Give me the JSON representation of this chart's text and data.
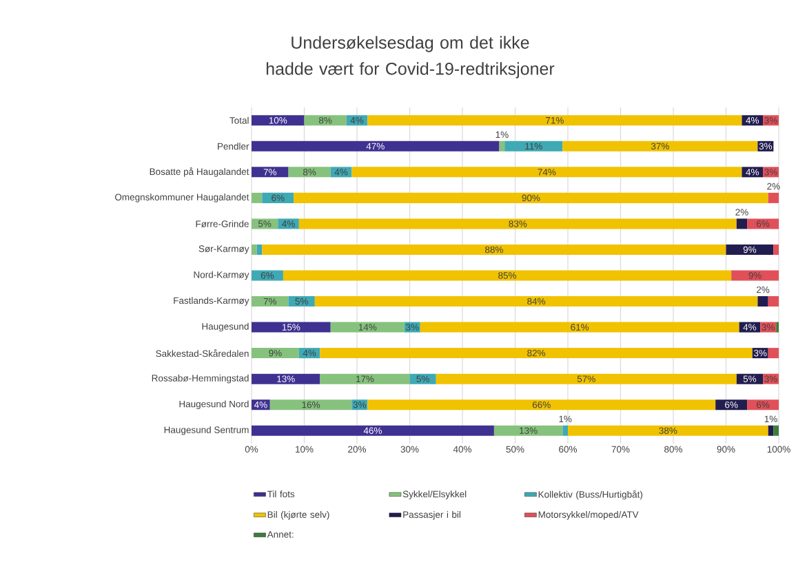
{
  "chart_data": {
    "type": "bar",
    "orientation": "horizontal",
    "stacked": true,
    "title": "Undersøkelsesdag om det ikke hadde vært for Covid-19-redtriksjoner",
    "categories": [
      "Total",
      "Pendler",
      "Bosatte på Haugalandet",
      "Omegnskommuner Haugalandet",
      "Førre-Grinde",
      "Sør-Karmøy",
      "Nord-Karmøy",
      "Fastlands-Karmøy",
      "Haugesund",
      "Sakkestad-Skåredalen",
      "Rossabø-Hemmingstad",
      "Haugesund Nord",
      "Haugesund Sentrum"
    ],
    "series": [
      {
        "name": "Til fots",
        "color": "#3f3191",
        "values": [
          10,
          47,
          7,
          null,
          null,
          null,
          null,
          null,
          15,
          null,
          13,
          3.5,
          46
        ],
        "value_labels": [
          "10%",
          "47%",
          "7%",
          null,
          null,
          null,
          null,
          null,
          "15%",
          null,
          "13%",
          "4%",
          "46%"
        ]
      },
      {
        "name": "Sykkel/Elsykkel",
        "color": "#86c27d",
        "values": [
          8,
          1,
          8,
          2,
          5,
          1,
          null,
          7,
          14,
          9,
          17,
          15.5,
          13
        ],
        "value_labels": [
          "8%",
          "1%",
          "8%",
          null,
          "5%",
          null,
          null,
          "7%",
          "14%",
          "9%",
          "17%",
          "16%",
          "13%"
        ]
      },
      {
        "name": "Kollektiv (Buss/Hurtigbåt)",
        "color": "#3fa9b4",
        "values": [
          4,
          11,
          4,
          6,
          4,
          1,
          6,
          5,
          3,
          4,
          5,
          3,
          1
        ],
        "value_labels": [
          "4%",
          "11%",
          "4%",
          "6%",
          "4%",
          null,
          "6%",
          "5%",
          "3%",
          "4%",
          "5%",
          "3%",
          "1%"
        ]
      },
      {
        "name": "Bil (kjørte selv)",
        "color": "#f0c200",
        "values": [
          71,
          37,
          74,
          90,
          83,
          88,
          85,
          84,
          60.5,
          82,
          57,
          66,
          38
        ],
        "value_labels": [
          "71%",
          "37%",
          "74%",
          "90%",
          "83%",
          "88%",
          "85%",
          "84%",
          "61%",
          "82%",
          "57%",
          "66%",
          "38%"
        ]
      },
      {
        "name": "Passasjer i bil",
        "color": "#221d4f",
        "values": [
          4,
          3,
          4,
          null,
          2,
          9,
          null,
          2,
          4,
          3,
          5,
          6,
          1
        ],
        "value_labels": [
          "4%",
          "3%",
          "4%",
          null,
          "2%",
          "9%",
          null,
          "2%",
          "4%",
          "3%",
          "5%",
          "6%",
          "1%"
        ]
      },
      {
        "name": "Motorsykkel/moped/ATV",
        "color": "#e15059",
        "values": [
          3,
          null,
          3,
          2,
          6,
          1,
          9,
          2,
          3,
          2,
          3,
          6,
          null
        ],
        "value_labels": [
          "3%",
          null,
          "3%",
          "2%",
          "6%",
          null,
          "9%",
          null,
          "3%",
          null,
          "3%",
          "6%",
          null
        ]
      },
      {
        "name": "Annet:",
        "color": "#3e7d38",
        "values": [
          null,
          null,
          null,
          null,
          null,
          null,
          null,
          null,
          0.5,
          null,
          null,
          null,
          1
        ]
      }
    ],
    "xlim": [
      0,
      100
    ],
    "xticks": [
      {
        "value": 0,
        "label": "0%"
      },
      {
        "value": 10,
        "label": "10%"
      },
      {
        "value": 20,
        "label": "20%"
      },
      {
        "value": 30,
        "label": "30%"
      },
      {
        "value": 40,
        "label": "40%"
      },
      {
        "value": 50,
        "label": "50%"
      },
      {
        "value": 60,
        "label": "60%"
      },
      {
        "value": 70,
        "label": "70%"
      },
      {
        "value": 80,
        "label": "80%"
      },
      {
        "value": 90,
        "label": "90%"
      },
      {
        "value": 100,
        "label": "100%"
      }
    ],
    "grid": "x",
    "legend": "bottom"
  }
}
